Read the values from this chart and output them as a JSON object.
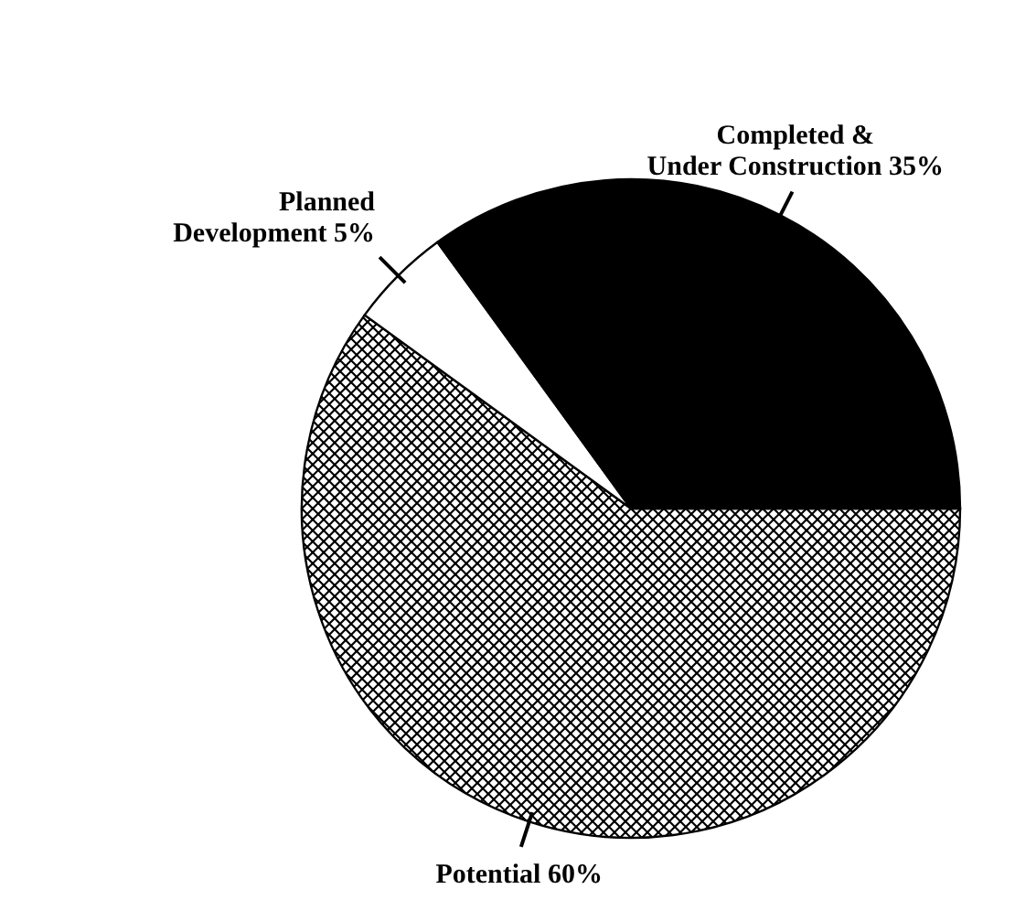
{
  "chart_data": {
    "type": "pie",
    "categories": [
      "Potential",
      "Planned\nDevelopment",
      "Completed &\nUnder Construction"
    ],
    "values": [
      60,
      5,
      35
    ],
    "colors": [
      "#000000",
      "#ffffff",
      "#000000"
    ],
    "value_labels": [
      "60%",
      "5%",
      "35%"
    ]
  }
}
